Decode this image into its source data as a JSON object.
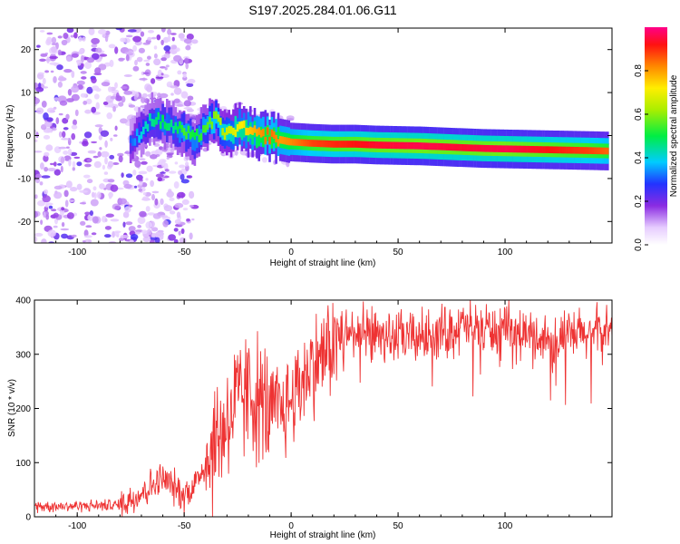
{
  "title": "S197.2025.284.01.06.G11",
  "chart_data": [
    {
      "type": "heatmap",
      "title": "S197.2025.284.01.06.G11",
      "xlabel": "Height of straight line (km)",
      "ylabel": "Frequency (Hz)",
      "xlim": [
        -120,
        150
      ],
      "ylim": [
        -25,
        25
      ],
      "xticks": [
        -100,
        -50,
        0,
        50,
        100
      ],
      "yticks": [
        -20,
        -10,
        0,
        10,
        20
      ],
      "colorbar": {
        "label": "Normalized spectral amplitude",
        "range": [
          0,
          1
        ],
        "ticks": [
          "0.0",
          "0.2",
          "0.4",
          "0.6",
          "0.8"
        ]
      },
      "ridge": {
        "x": [
          -75,
          -70,
          -65,
          -60,
          -55,
          -50,
          -45,
          -40,
          -35,
          -30,
          -25,
          -20,
          -15,
          -10,
          -5,
          0,
          10,
          20,
          30,
          40,
          50,
          60,
          70,
          80,
          90,
          100,
          110,
          120,
          130,
          140,
          148
        ],
        "y": [
          -2,
          1,
          4,
          3,
          2,
          1,
          -1,
          2,
          4,
          0,
          2,
          1,
          0,
          0,
          -1,
          -1.5,
          -1.8,
          -2,
          -2,
          -2.2,
          -2.3,
          -2.4,
          -2.6,
          -2.8,
          -3,
          -3.1,
          -3.2,
          -3.3,
          -3.4,
          -3.5,
          -3.6
        ],
        "amplitude": [
          0.3,
          0.4,
          0.45,
          0.5,
          0.45,
          0.55,
          0.5,
          0.55,
          0.6,
          0.65,
          0.7,
          0.75,
          0.8,
          0.85,
          0.8,
          0.82,
          0.88,
          0.9,
          0.92,
          0.94,
          0.95,
          0.96,
          0.95,
          0.94,
          0.95,
          0.96,
          0.94,
          0.92,
          0.9,
          0.88,
          0.85
        ]
      }
    },
    {
      "type": "line",
      "xlabel": "Height of straight line (km)",
      "ylabel": "SNR (10 * v/v)",
      "xlim": [
        -120,
        150
      ],
      "ylim": [
        0,
        400
      ],
      "xticks": [
        -100,
        -50,
        0,
        50,
        100
      ],
      "yticks": [
        0,
        100,
        200,
        300,
        400
      ],
      "color": "#ee3333",
      "x": [
        -120,
        -100,
        -80,
        -70,
        -60,
        -55,
        -50,
        -45,
        -40,
        -35,
        -30,
        -25,
        -20,
        -15,
        -10,
        -5,
        0,
        5,
        10,
        15,
        20,
        25,
        30,
        40,
        50,
        60,
        70,
        80,
        90,
        100,
        110,
        120,
        130,
        140,
        150
      ],
      "values": [
        20,
        20,
        22,
        45,
        70,
        55,
        40,
        60,
        100,
        140,
        180,
        210,
        230,
        215,
        190,
        195,
        215,
        255,
        280,
        300,
        320,
        335,
        340,
        338,
        330,
        332,
        340,
        350,
        348,
        340,
        335,
        328,
        332,
        338,
        345
      ]
    }
  ]
}
